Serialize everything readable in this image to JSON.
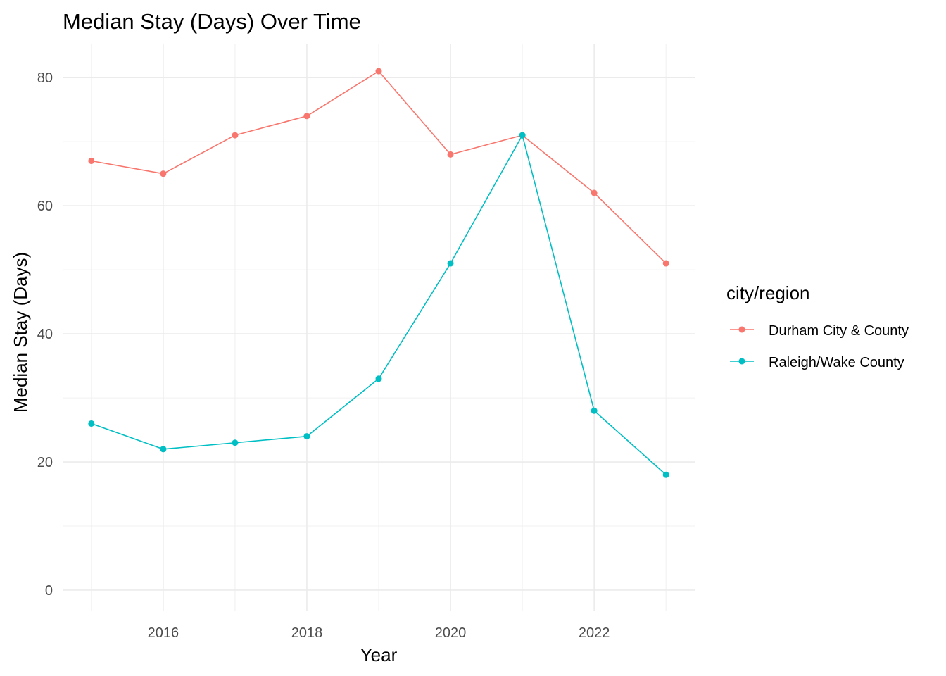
{
  "chart_data": {
    "type": "line",
    "title": "Median Stay (Days) Over Time",
    "xlabel": "Year",
    "ylabel": "Median Stay (Days)",
    "x": [
      2015,
      2016,
      2017,
      2018,
      2019,
      2020,
      2021,
      2022,
      2023
    ],
    "xlim": [
      2014.6,
      2023.4
    ],
    "ylim": [
      -3.3,
      85.3
    ],
    "x_ticks": [
      2016,
      2018,
      2020,
      2022
    ],
    "x_tick_labels": [
      "2016",
      "2018",
      "2020",
      "2022"
    ],
    "y_ticks": [
      0,
      20,
      40,
      60,
      80
    ],
    "y_tick_labels": [
      "0",
      "20",
      "40",
      "60",
      "80"
    ],
    "grid": true,
    "legend": {
      "title": "city/region",
      "position": "right"
    },
    "series": [
      {
        "name": "Durham City & County",
        "color": "#F8766D",
        "values": [
          67,
          65,
          71,
          74,
          81,
          68,
          71,
          62,
          51
        ]
      },
      {
        "name": "Raleigh/Wake County",
        "color": "#00BFC4",
        "values": [
          26,
          22,
          23,
          24,
          33,
          51,
          71,
          28,
          18
        ]
      }
    ]
  }
}
